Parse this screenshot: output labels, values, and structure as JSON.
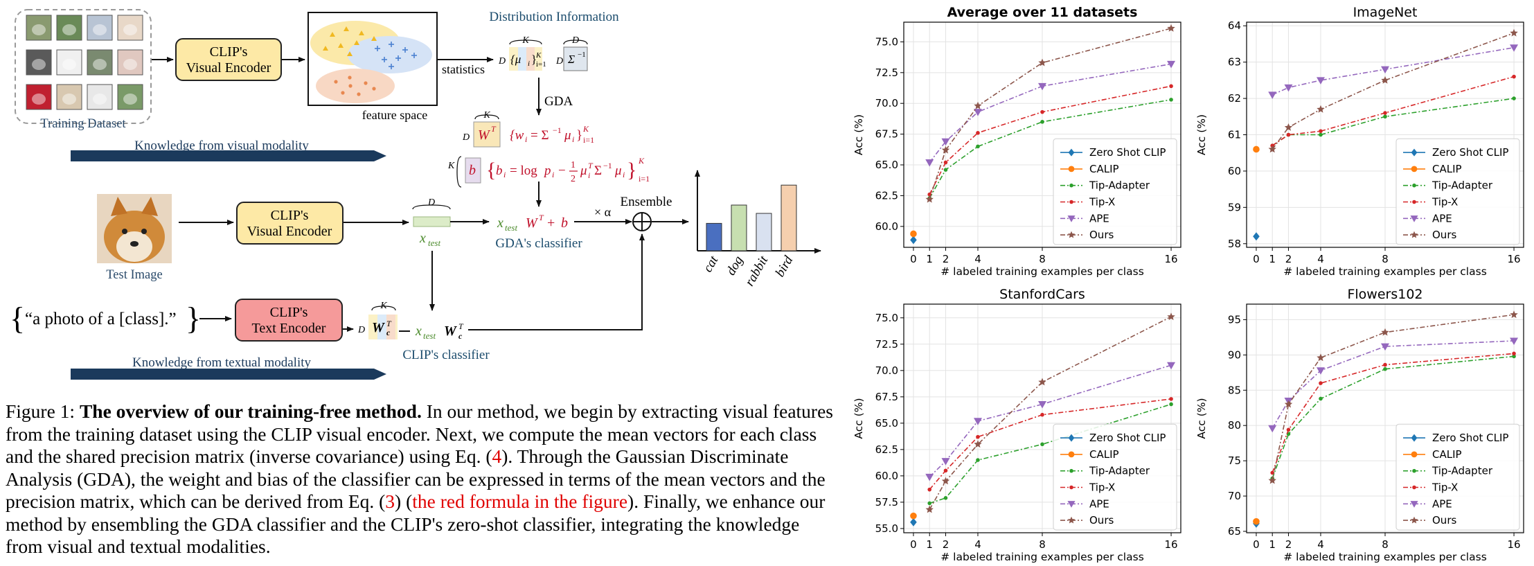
{
  "diagram": {
    "training_dataset_label": "Training Dataset",
    "visual_encoder_label_1": "CLIP's",
    "visual_encoder_label_2": "Visual Encoder",
    "text_encoder_label_1": "CLIP's",
    "text_encoder_label_2": "Text Encoder",
    "feature_space_label": "feature space",
    "statistics_label": "statistics",
    "distribution_info_label": "Distribution Information",
    "gda_label": "GDA",
    "knowledge_visual": "Knowledge from visual modality",
    "knowledge_textual": "Knowledge from textual modality",
    "test_image_label": "Test Image",
    "prompt_text": "“a photo of a [class].”",
    "x_test_label": "x",
    "x_test_sub": "test",
    "gda_classifier_label": "GDA's classifier",
    "clip_classifier_label": "CLIP's classifier",
    "ensemble_label": "Ensemble",
    "times_alpha": "× α",
    "dim_D": "D",
    "dim_K": "K",
    "bar_categories": [
      "cat",
      "dog",
      "rabbit",
      "bird"
    ],
    "bar_values": [
      0.33,
      0.55,
      0.45,
      0.79
    ],
    "bar_colors": [
      "#4a6fc0",
      "#c7dfb0",
      "#d9e1f0",
      "#f5cfae"
    ]
  },
  "caption": {
    "prefix": "Figure 1:",
    "bold": "The overview of our training-free method.",
    "text1": " In our method, we begin by extracting visual features from the training dataset using the CLIP visual encoder. Next, we compute the mean vectors for each class and the shared precision matrix (inverse covariance) using Eq. (",
    "ref1": "4",
    "text2": "). Through the Gaussian Discriminate Analysis (GDA), the weight and bias of the classifier can be expressed in terms of the mean vectors and the precision matrix, which can be derived from Eq. (",
    "ref2": "3",
    "text3": ") (",
    "red": "the red formula in the figure",
    "text4": "). Finally, we enhance our method by ensembling the GDA classifier and the CLIP's zero-shot classifier, integrating the knowledge from visual and textual modalities."
  },
  "chart_data": [
    {
      "type": "line",
      "title": "Average over 11 datasets",
      "title_bold": true,
      "xlabel": "# labeled training examples per class",
      "ylabel": "Acc (%)",
      "xticks": [
        0,
        1,
        2,
        4,
        8,
        16
      ],
      "yticks": [
        60.0,
        62.5,
        65.0,
        67.5,
        70.0,
        72.5,
        75.0
      ],
      "ytick_labels": [
        "60.0",
        "62.5",
        "65.0",
        "67.5",
        "70.0",
        "72.5",
        "75.0"
      ],
      "ylim": [
        58.3,
        76.6
      ],
      "legend": "lower right",
      "grid": true,
      "points": [
        {
          "name": "Zero Shot CLIP",
          "x": 0,
          "y": 58.9
        },
        {
          "name": "CALIP",
          "x": 0,
          "y": 59.4
        }
      ],
      "series": [
        {
          "name": "Tip-Adapter",
          "x": [
            1,
            2,
            4,
            8,
            16
          ],
          "y": [
            62.3,
            64.6,
            66.5,
            68.5,
            70.3
          ]
        },
        {
          "name": "Tip-X",
          "x": [
            1,
            2,
            4,
            8,
            16
          ],
          "y": [
            62.6,
            65.2,
            67.6,
            69.3,
            71.4
          ]
        },
        {
          "name": "APE",
          "x": [
            1,
            2,
            4,
            8,
            16
          ],
          "y": [
            65.2,
            66.9,
            69.3,
            71.4,
            73.2
          ]
        },
        {
          "name": "Ours",
          "x": [
            1,
            2,
            4,
            8,
            16
          ],
          "y": [
            62.2,
            66.2,
            69.8,
            73.3,
            76.1
          ]
        }
      ]
    },
    {
      "type": "line",
      "title": "ImageNet",
      "title_bold": false,
      "xlabel": "# labeled training examples per class",
      "ylabel": "Acc (%)",
      "xticks": [
        0,
        1,
        2,
        4,
        8,
        16
      ],
      "yticks": [
        58,
        59,
        60,
        61,
        62,
        63,
        64
      ],
      "ytick_labels": [
        "58",
        "59",
        "60",
        "61",
        "62",
        "63",
        "64"
      ],
      "ylim": [
        57.9,
        64.1
      ],
      "legend": "lower right",
      "grid": true,
      "points": [
        {
          "name": "Zero Shot CLIP",
          "x": 0,
          "y": 58.2
        },
        {
          "name": "CALIP",
          "x": 0,
          "y": 60.6
        }
      ],
      "series": [
        {
          "name": "Tip-Adapter",
          "x": [
            1,
            2,
            4,
            8,
            16
          ],
          "y": [
            60.7,
            61.0,
            61.0,
            61.5,
            62.0
          ]
        },
        {
          "name": "Tip-X",
          "x": [
            1,
            2,
            4,
            8,
            16
          ],
          "y": [
            60.7,
            61.0,
            61.1,
            61.6,
            62.6
          ]
        },
        {
          "name": "APE",
          "x": [
            1,
            2,
            4,
            8,
            16
          ],
          "y": [
            62.1,
            62.3,
            62.5,
            62.8,
            63.4
          ]
        },
        {
          "name": "Ours",
          "x": [
            1,
            2,
            4,
            8,
            16
          ],
          "y": [
            60.6,
            61.2,
            61.7,
            62.5,
            63.8
          ]
        }
      ]
    },
    {
      "type": "line",
      "title": "StanfordCars",
      "title_bold": false,
      "xlabel": "# labeled training examples per class",
      "ylabel": "Acc (%)",
      "xticks": [
        0,
        1,
        2,
        4,
        8,
        16
      ],
      "yticks": [
        55.0,
        57.5,
        60.0,
        62.5,
        65.0,
        67.5,
        70.0,
        72.5,
        75.0
      ],
      "ytick_labels": [
        "55.0",
        "57.5",
        "60.0",
        "62.5",
        "65.0",
        "67.5",
        "70.0",
        "72.5",
        "75.0"
      ],
      "ylim": [
        54.6,
        76.3
      ],
      "legend": "lower right",
      "grid": true,
      "points": [
        {
          "name": "Zero Shot CLIP",
          "x": 0,
          "y": 55.6
        },
        {
          "name": "CALIP",
          "x": 0,
          "y": 56.2
        }
      ],
      "series": [
        {
          "name": "Tip-Adapter",
          "x": [
            1,
            2,
            4,
            8,
            16
          ],
          "y": [
            57.4,
            57.9,
            61.5,
            63.0,
            66.8
          ]
        },
        {
          "name": "Tip-X",
          "x": [
            1,
            2,
            4,
            8,
            16
          ],
          "y": [
            58.7,
            60.5,
            63.7,
            65.8,
            67.3
          ]
        },
        {
          "name": "APE",
          "x": [
            1,
            2,
            4,
            8,
            16
          ],
          "y": [
            59.9,
            61.4,
            65.2,
            66.8,
            70.5
          ]
        },
        {
          "name": "Ours",
          "x": [
            1,
            2,
            4,
            8,
            16
          ],
          "y": [
            56.8,
            59.5,
            63.0,
            68.9,
            75.1
          ]
        }
      ]
    },
    {
      "type": "line",
      "title": "Flowers102",
      "title_bold": false,
      "xlabel": "# labeled training examples per class",
      "ylabel": "Acc (%)",
      "xticks": [
        0,
        1,
        2,
        4,
        8,
        16
      ],
      "yticks": [
        65,
        70,
        75,
        80,
        85,
        90,
        95
      ],
      "ytick_labels": [
        "65",
        "70",
        "75",
        "80",
        "85",
        "90",
        "95"
      ],
      "ylim": [
        64.8,
        97.2
      ],
      "legend": "lower right",
      "grid": true,
      "points": [
        {
          "name": "Zero Shot CLIP",
          "x": 0,
          "y": 66.1
        },
        {
          "name": "CALIP",
          "x": 0,
          "y": 66.4
        }
      ],
      "series": [
        {
          "name": "Tip-Adapter",
          "x": [
            1,
            2,
            4,
            8,
            16
          ],
          "y": [
            72.5,
            78.8,
            83.8,
            88.0,
            89.8
          ]
        },
        {
          "name": "Tip-X",
          "x": [
            1,
            2,
            4,
            8,
            16
          ],
          "y": [
            73.3,
            79.4,
            86.0,
            88.6,
            90.2
          ]
        },
        {
          "name": "APE",
          "x": [
            1,
            2,
            4,
            8,
            16
          ],
          "y": [
            79.6,
            83.5,
            87.8,
            91.2,
            92.0
          ]
        },
        {
          "name": "Ours",
          "x": [
            1,
            2,
            4,
            8,
            16
          ],
          "y": [
            72.2,
            83.0,
            89.6,
            93.2,
            95.7
          ]
        }
      ]
    }
  ],
  "series_styles": {
    "Zero Shot CLIP": {
      "color": "#1f77b4",
      "marker": "diamond"
    },
    "CALIP": {
      "color": "#ff7f0e",
      "marker": "circle"
    },
    "Tip-Adapter": {
      "color": "#2ca02c",
      "marker": "dot"
    },
    "Tip-X": {
      "color": "#d62728",
      "marker": "dot"
    },
    "APE": {
      "color": "#9467bd",
      "marker": "triangle-down"
    },
    "Ours": {
      "color": "#8c564b",
      "marker": "star"
    }
  },
  "legend_order": [
    "Zero Shot CLIP",
    "CALIP",
    "Tip-Adapter",
    "Tip-X",
    "APE",
    "Ours"
  ]
}
